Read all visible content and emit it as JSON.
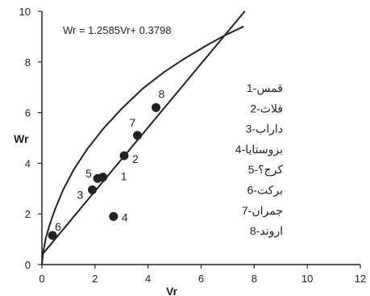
{
  "chart_data": {
    "type": "scatter",
    "xlabel": "Vr",
    "ylabel": "Wr",
    "xlim": [
      0,
      12
    ],
    "ylim": [
      0,
      10
    ],
    "x_ticks": [
      "0",
      "2",
      "4",
      "6",
      "8",
      "10",
      "12"
    ],
    "y_ticks": [
      "0",
      "2",
      "4",
      "6",
      "8",
      "10"
    ],
    "equation": "Wr = 1.2585Vr+ 0.3798",
    "grid": false,
    "points": [
      {
        "label": "1",
        "x": 2.3,
        "y": 3.45
      },
      {
        "label": "2",
        "x": 3.1,
        "y": 4.3
      },
      {
        "label": "3",
        "x": 1.9,
        "y": 2.95
      },
      {
        "label": "4",
        "x": 2.7,
        "y": 1.9
      },
      {
        "label": "5",
        "x": 2.1,
        "y": 3.4
      },
      {
        "label": "6",
        "x": 0.4,
        "y": 1.15
      },
      {
        "label": "7",
        "x": 3.6,
        "y": 5.1
      },
      {
        "label": "8",
        "x": 4.3,
        "y": 6.2
      }
    ],
    "fit_line": {
      "slope": 1.2585,
      "intercept": 0.3798,
      "x_range": [
        0,
        7.65
      ]
    },
    "envelope_curve": {
      "x": [
        0,
        0.05,
        0.15,
        0.3,
        0.5,
        0.8,
        1.2,
        1.7,
        2.3,
        3.0,
        3.8,
        4.6,
        5.4,
        6.2,
        6.9,
        7.6
      ],
      "y": [
        0.0,
        0.5,
        1.05,
        1.6,
        2.2,
        2.95,
        3.75,
        4.55,
        5.35,
        6.15,
        6.95,
        7.6,
        8.15,
        8.65,
        9.05,
        9.4
      ]
    },
    "legend": [
      "1-قمس",
      "2-فلاث",
      "3-داراب",
      "4-بزوستایا",
      "5-کرج؟",
      "6-برکت",
      "7-جمران",
      "8-اروند"
    ]
  }
}
